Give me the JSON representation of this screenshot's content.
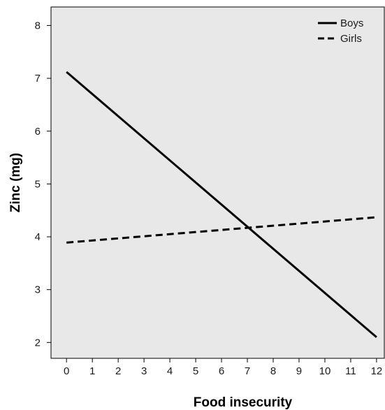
{
  "chart_data": {
    "type": "line",
    "xlabel": "Food insecurity",
    "ylabel": "Zinc (mg)",
    "xlim": [
      -0.6,
      12.3
    ],
    "ylim": [
      1.7,
      8.35
    ],
    "xticks": [
      0,
      1,
      2,
      3,
      4,
      5,
      6,
      7,
      8,
      9,
      10,
      11,
      12
    ],
    "yticks": [
      2,
      3,
      4,
      5,
      6,
      7,
      8
    ],
    "grid": false,
    "legend_position": "top-right",
    "background_color": "#e8e8e8",
    "series": [
      {
        "name": "Boys",
        "style": "solid",
        "color": "#000000",
        "x": [
          0,
          12
        ],
        "y": [
          7.12,
          2.1
        ]
      },
      {
        "name": "Girls",
        "style": "dashed",
        "color": "#000000",
        "x": [
          0,
          12
        ],
        "y": [
          3.89,
          4.37
        ]
      }
    ]
  }
}
